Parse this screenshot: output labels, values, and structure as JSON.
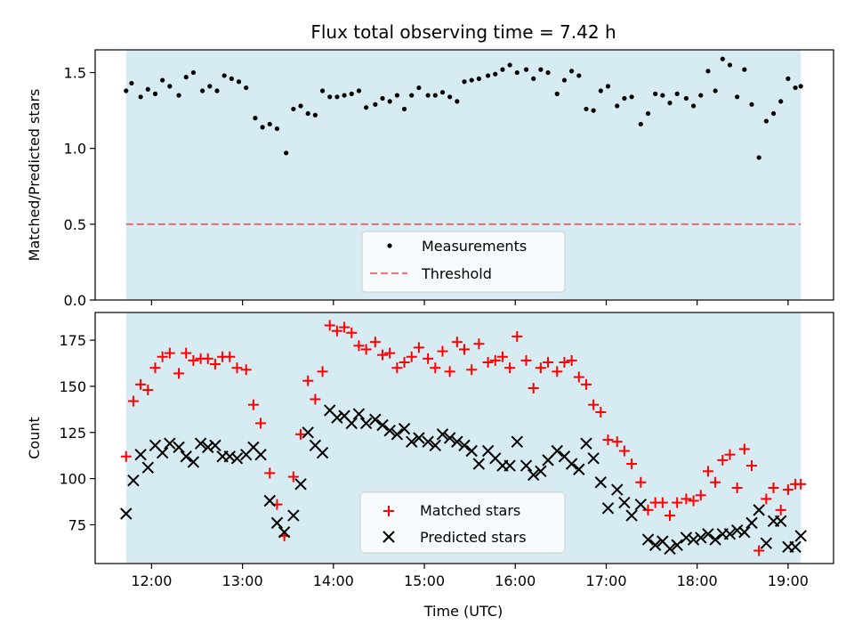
{
  "chart_data": {
    "title": "Flux total observing time = 7.42 h",
    "xlabel": "Time (UTC)",
    "x_ticks": [
      {
        "t": 12.0,
        "label": "12:00"
      },
      {
        "t": 13.0,
        "label": "13:00"
      },
      {
        "t": 14.0,
        "label": "14:00"
      },
      {
        "t": 15.0,
        "label": "15:00"
      },
      {
        "t": 16.0,
        "label": "16:00"
      },
      {
        "t": 17.0,
        "label": "17:00"
      },
      {
        "t": 18.0,
        "label": "18:00"
      },
      {
        "t": 19.0,
        "label": "19:00"
      }
    ],
    "xlim": [
      11.38,
      19.5
    ],
    "observing_window": [
      11.72,
      19.14
    ],
    "colors": {
      "window": "#add8e6",
      "threshold": "#ff0000",
      "matched": "#ff0000",
      "predicted": "#000000",
      "measure": "#000000"
    },
    "panels": [
      {
        "type": "scatter",
        "ylabel": "Matched/Predicted stars",
        "ylim": [
          0,
          1.65
        ],
        "y_ticks": [
          "0.0",
          "0.5",
          "1.0",
          "1.5"
        ],
        "threshold": 0.5,
        "legend": {
          "position": "lower-center",
          "entries": [
            "Measurements",
            "Threshold"
          ]
        },
        "series": [
          {
            "name": "Measurements",
            "x": [
              11.72,
              11.78,
              11.88,
              11.96,
              12.04,
              12.12,
              12.2,
              12.3,
              12.38,
              12.46,
              12.56,
              12.64,
              12.72,
              12.8,
              12.88,
              12.96,
              13.04,
              13.14,
              13.22,
              13.3,
              13.38,
              13.48,
              13.56,
              13.64,
              13.72,
              13.8,
              13.88,
              13.96,
              14.04,
              14.12,
              14.2,
              14.28,
              14.36,
              14.46,
              14.54,
              14.62,
              14.7,
              14.78,
              14.86,
              14.94,
              15.04,
              15.12,
              15.2,
              15.28,
              15.36,
              15.44,
              15.52,
              15.6,
              15.7,
              15.78,
              15.86,
              15.94,
              16.02,
              16.12,
              16.2,
              16.28,
              16.36,
              16.46,
              16.54,
              16.62,
              16.7,
              16.78,
              16.86,
              16.94,
              17.02,
              17.12,
              17.2,
              17.28,
              17.38,
              17.46,
              17.54,
              17.62,
              17.7,
              17.78,
              17.88,
              17.96,
              18.04,
              18.12,
              18.2,
              18.28,
              18.36,
              18.44,
              18.52,
              18.6,
              18.68,
              18.76,
              18.84,
              18.92,
              19.0,
              19.08,
              19.14
            ],
            "y": [
              1.38,
              1.43,
              1.34,
              1.39,
              1.36,
              1.45,
              1.41,
              1.35,
              1.47,
              1.5,
              1.38,
              1.41,
              1.38,
              1.48,
              1.46,
              1.44,
              1.4,
              1.2,
              1.14,
              1.16,
              1.13,
              0.97,
              1.26,
              1.28,
              1.23,
              1.22,
              1.38,
              1.34,
              1.34,
              1.35,
              1.36,
              1.38,
              1.27,
              1.29,
              1.33,
              1.31,
              1.35,
              1.26,
              1.35,
              1.4,
              1.35,
              1.35,
              1.37,
              1.34,
              1.31,
              1.44,
              1.45,
              1.46,
              1.48,
              1.49,
              1.52,
              1.55,
              1.5,
              1.52,
              1.46,
              1.52,
              1.5,
              1.36,
              1.45,
              1.51,
              1.48,
              1.26,
              1.25,
              1.38,
              1.41,
              1.28,
              1.33,
              1.34,
              1.16,
              1.23,
              1.36,
              1.35,
              1.3,
              1.36,
              1.33,
              1.28,
              1.35,
              1.51,
              1.38,
              1.59,
              1.55,
              1.34,
              1.52,
              1.29,
              0.94,
              1.18,
              1.23,
              1.31,
              1.46,
              1.4,
              1.41
            ]
          }
        ]
      },
      {
        "type": "scatter",
        "ylabel": "Count",
        "ylim": [
          54,
          190
        ],
        "y_ticks": [
          "75",
          "100",
          "125",
          "150",
          "175"
        ],
        "legend": {
          "position": "lower-center",
          "entries": [
            "Matched stars",
            "Predicted stars"
          ]
        },
        "series": [
          {
            "name": "Matched stars",
            "x": [
              11.72,
              11.8,
              11.88,
              11.96,
              12.04,
              12.12,
              12.2,
              12.3,
              12.38,
              12.46,
              12.54,
              12.62,
              12.7,
              12.78,
              12.86,
              12.94,
              13.04,
              13.12,
              13.2,
              13.3,
              13.38,
              13.46,
              13.56,
              13.64,
              13.72,
              13.8,
              13.88,
              13.96,
              14.04,
              14.12,
              14.2,
              14.28,
              14.36,
              14.46,
              14.54,
              14.62,
              14.7,
              14.78,
              14.86,
              14.94,
              15.04,
              15.12,
              15.2,
              15.28,
              15.36,
              15.44,
              15.52,
              15.6,
              15.7,
              15.78,
              15.86,
              15.94,
              16.02,
              16.12,
              16.2,
              16.28,
              16.36,
              16.46,
              16.54,
              16.62,
              16.7,
              16.78,
              16.86,
              16.94,
              17.02,
              17.12,
              17.2,
              17.28,
              17.38,
              17.46,
              17.54,
              17.62,
              17.7,
              17.78,
              17.88,
              17.96,
              18.04,
              18.12,
              18.2,
              18.28,
              18.36,
              18.44,
              18.52,
              18.6,
              18.68,
              18.76,
              18.84,
              18.92,
              19.0,
              19.08,
              19.14
            ],
            "y": [
              112,
              142,
              151,
              148,
              160,
              166,
              168,
              157,
              168,
              164,
              165,
              165,
              162,
              166,
              166,
              160,
              159,
              140,
              130,
              103,
              86,
              69,
              101,
              124,
              153,
              143,
              158,
              183,
              180,
              182,
              179,
              172,
              170,
              174,
              167,
              168,
              160,
              163,
              166,
              171,
              165,
              160,
              169,
              158,
              174,
              170,
              159,
              173,
              163,
              164,
              166,
              160,
              177,
              164,
              149,
              160,
              163,
              158,
              163,
              164,
              155,
              151,
              140,
              136,
              121,
              120,
              115,
              108,
              98,
              83,
              87,
              87,
              80,
              87,
              89,
              88,
              91,
              104,
              98,
              110,
              113,
              95,
              116,
              107,
              61,
              89,
              95,
              83,
              94,
              97,
              97
            ],
            "marker": "plus"
          },
          {
            "name": "Predicted stars",
            "x": [
              11.72,
              11.8,
              11.88,
              11.96,
              12.04,
              12.12,
              12.2,
              12.3,
              12.38,
              12.46,
              12.54,
              12.62,
              12.7,
              12.78,
              12.86,
              12.94,
              13.04,
              13.12,
              13.2,
              13.3,
              13.38,
              13.46,
              13.56,
              13.64,
              13.72,
              13.8,
              13.88,
              13.96,
              14.04,
              14.12,
              14.2,
              14.28,
              14.36,
              14.46,
              14.54,
              14.62,
              14.7,
              14.78,
              14.86,
              14.94,
              15.04,
              15.12,
              15.2,
              15.28,
              15.36,
              15.44,
              15.52,
              15.6,
              15.7,
              15.78,
              15.86,
              15.94,
              16.02,
              16.12,
              16.2,
              16.28,
              16.36,
              16.46,
              16.54,
              16.62,
              16.7,
              16.78,
              16.86,
              16.94,
              17.02,
              17.12,
              17.2,
              17.28,
              17.38,
              17.46,
              17.54,
              17.62,
              17.7,
              17.78,
              17.88,
              17.96,
              18.04,
              18.12,
              18.2,
              18.28,
              18.36,
              18.44,
              18.52,
              18.6,
              18.68,
              18.76,
              18.84,
              18.92,
              19.0,
              19.08,
              19.14
            ],
            "y": [
              81,
              99,
              113,
              106,
              118,
              114,
              119,
              117,
              112,
              109,
              119,
              117,
              118,
              112,
              112,
              111,
              113,
              117,
              113,
              88,
              76,
              71,
              80,
              97,
              125,
              118,
              114,
              137,
              133,
              134,
              130,
              135,
              130,
              132,
              129,
              126,
              124,
              127,
              120,
              122,
              120,
              118,
              124,
              122,
              120,
              118,
              115,
              108,
              115,
              111,
              107,
              107,
              120,
              107,
              102,
              104,
              110,
              115,
              112,
              108,
              105,
              119,
              111,
              98,
              84,
              94,
              87,
              80,
              86,
              67,
              64,
              66,
              62,
              64,
              68,
              67,
              68,
              70,
              67,
              70,
              70,
              72,
              71,
              76,
              83,
              65,
              77,
              77,
              63,
              63,
              69
            ],
            "marker": "x"
          }
        ]
      }
    ]
  }
}
